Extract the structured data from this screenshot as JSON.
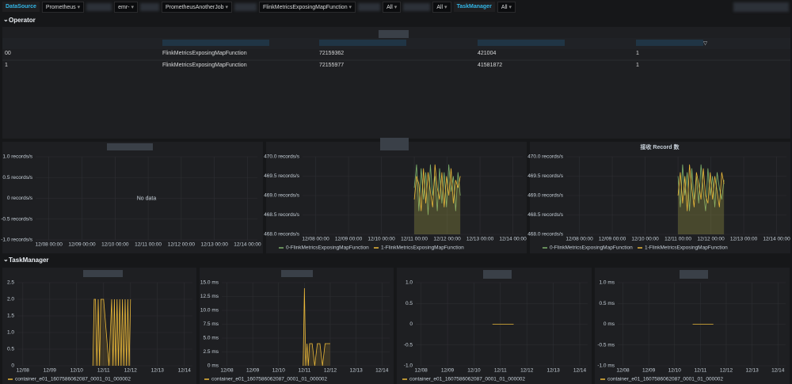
{
  "toolbar": {
    "datasource_label": "DataSource",
    "datasource": "Prometheus",
    "job_prefix": "emr-",
    "job": "PrometheusAnotherJob",
    "operator": "FlinkMetricsExposingMapFunction",
    "filter1": "All",
    "filter2": "All",
    "taskmanager_label": "TaskManager",
    "taskmanager": "All"
  },
  "sections": [
    "Operator",
    "TaskManager"
  ],
  "table": {
    "rows": [
      [
        "00",
        "FlinkMetricsExposingMapFunction",
        72159362,
        421004,
        1
      ],
      [
        "1",
        "FlinkMetricsExposingMapFunction",
        72155977,
        41581872,
        1
      ]
    ]
  },
  "chart_data": [
    {
      "type": "line",
      "no_data_text": "No data",
      "xlim": [
        -0.4,
        6.3
      ],
      "ylim": [
        -1,
        1
      ],
      "yticks": [
        {
          "value": 1,
          "label": "1.0 records/s"
        },
        {
          "value": 0.5,
          "label": "0.5 records/s"
        },
        {
          "value": 0,
          "label": "0 records/s"
        },
        {
          "value": -0.5,
          "label": "-0.5 records/s"
        },
        {
          "value": -1,
          "label": "-1.0 records/s"
        }
      ],
      "xticks": [
        {
          "value": 0,
          "label": "12/08 00:00"
        },
        {
          "value": 1,
          "label": "12/09 00:00"
        },
        {
          "value": 2,
          "label": "12/10 00:00"
        },
        {
          "value": 3,
          "label": "12/11 00:00"
        },
        {
          "value": 4,
          "label": "12/12 00:00"
        },
        {
          "value": 5,
          "label": "12/13 00:00"
        },
        {
          "value": 6,
          "label": "12/14 00:00"
        }
      ],
      "x": [],
      "series": []
    },
    {
      "type": "line",
      "xlim": [
        -0.4,
        6.3
      ],
      "ylim": [
        468,
        470
      ],
      "yticks": [
        {
          "value": 470,
          "label": "470.0 records/s"
        },
        {
          "value": 469.5,
          "label": "469.5 records/s"
        },
        {
          "value": 469,
          "label": "469.0 records/s"
        },
        {
          "value": 468.5,
          "label": "468.5 records/s"
        },
        {
          "value": 468,
          "label": "468.0 records/s"
        }
      ],
      "xticks": [
        {
          "value": 0,
          "label": "12/08 00:00"
        },
        {
          "value": 1,
          "label": "12/09 00:00"
        },
        {
          "value": 2,
          "label": "12/10 00:00"
        },
        {
          "value": 3,
          "label": "12/11 00:00"
        },
        {
          "value": 4,
          "label": "12/12 00:00"
        },
        {
          "value": 5,
          "label": "12/13 00:00"
        },
        {
          "value": 6,
          "label": "12/14 00:00"
        }
      ],
      "x": [
        3.0,
        3.07,
        3.14,
        3.21,
        3.28,
        3.35,
        3.42,
        3.49,
        3.56,
        3.63,
        3.7,
        3.77,
        3.84,
        3.91,
        3.98,
        4.05,
        4.12,
        4.19,
        4.26,
        4.33,
        4.4
      ],
      "series": [
        {
          "name": "0-FlinkMetricsExposingMapFunction",
          "color": "#7eb26d",
          "values": [
            469.2,
            469.8,
            468.6,
            469.7,
            468.9,
            469.6,
            468.5,
            469.8,
            469.0,
            469.5,
            468.6,
            469.7,
            468.8,
            469.6,
            468.7,
            469.8,
            469.1,
            469.5,
            468.6,
            469.6,
            469.0
          ]
        },
        {
          "name": "1-FlinkMetricsExposingMapFunction",
          "color": "#eab839",
          "values": [
            468.9,
            469.5,
            469.3,
            468.6,
            469.7,
            468.8,
            469.6,
            469.1,
            468.7,
            469.8,
            469.2,
            468.9,
            469.6,
            468.7,
            469.5,
            469.0,
            469.7,
            468.8,
            469.4,
            469.2,
            469.5
          ]
        }
      ]
    },
    {
      "type": "line",
      "title": "接收 Record 数",
      "xlim": [
        -0.4,
        6.3
      ],
      "ylim": [
        468,
        470
      ],
      "yticks": [
        {
          "value": 470,
          "label": "470.0 records/s"
        },
        {
          "value": 469.5,
          "label": "469.5 records/s"
        },
        {
          "value": 469,
          "label": "469.0 records/s"
        },
        {
          "value": 468.5,
          "label": "468.5 records/s"
        },
        {
          "value": 468,
          "label": "468.0 records/s"
        }
      ],
      "xticks": [
        {
          "value": 0,
          "label": "12/08 00:00"
        },
        {
          "value": 1,
          "label": "12/09 00:00"
        },
        {
          "value": 2,
          "label": "12/10 00:00"
        },
        {
          "value": 3,
          "label": "12/11 00:00"
        },
        {
          "value": 4,
          "label": "12/12 00:00"
        },
        {
          "value": 5,
          "label": "12/13 00:00"
        },
        {
          "value": 6,
          "label": "12/14 00:00"
        }
      ],
      "x": [
        3.0,
        3.07,
        3.14,
        3.21,
        3.28,
        3.35,
        3.42,
        3.49,
        3.56,
        3.63,
        3.7,
        3.77,
        3.84,
        3.91,
        3.98,
        4.05,
        4.12,
        4.19,
        4.26,
        4.33,
        4.4
      ],
      "series": [
        {
          "name": "0-FlinkMetricsExposingMapFunction",
          "color": "#7eb26d",
          "values": [
            469.5,
            468.7,
            469.8,
            469.0,
            469.6,
            468.6,
            469.7,
            468.9,
            469.5,
            468.8,
            469.8,
            469.1,
            468.6,
            469.7,
            469.0,
            469.5,
            468.7,
            469.6,
            469.2,
            468.9,
            469.4
          ]
        },
        {
          "name": "1-FlinkMetricsExposingMapFunction",
          "color": "#eab839",
          "values": [
            469.0,
            469.6,
            468.8,
            469.5,
            468.6,
            469.8,
            469.2,
            468.7,
            469.6,
            469.3,
            468.9,
            469.7,
            469.0,
            468.8,
            469.6,
            468.9,
            469.5,
            469.1,
            468.7,
            469.6,
            469.3
          ]
        }
      ]
    },
    {
      "type": "line",
      "xlim": [
        -0.2,
        6.3
      ],
      "ylim": [
        0,
        2.5
      ],
      "yticks": [
        {
          "value": 2.5,
          "label": "2.5"
        },
        {
          "value": 2,
          "label": "2.0"
        },
        1.5,
        {
          "value": 1,
          "label": "1.0"
        },
        0.5,
        0
      ],
      "xticks": [
        {
          "value": 0,
          "label": "12/08"
        },
        {
          "value": 1,
          "label": "12/09"
        },
        {
          "value": 2,
          "label": "12/10"
        },
        {
          "value": 3,
          "label": "12/11"
        },
        {
          "value": 4,
          "label": "12/12"
        },
        {
          "value": 5,
          "label": "12/13"
        },
        {
          "value": 6,
          "label": "12/14"
        }
      ],
      "x": [
        2.6,
        2.65,
        2.7,
        2.75,
        2.8,
        2.85,
        2.9,
        3.0,
        3.2,
        3.3,
        3.35,
        3.4,
        3.45,
        3.5,
        3.55,
        3.6,
        3.65,
        3.7,
        3.75,
        3.8,
        3.85,
        3.9,
        3.95,
        4.0
      ],
      "series": [
        {
          "name": "container_e01_1607586062087_0001_01_000002",
          "color": "#eab839",
          "values": [
            0,
            2,
            2,
            0,
            2,
            0,
            2,
            2,
            0,
            2,
            0,
            2,
            0,
            2,
            0,
            2,
            0,
            2,
            0,
            2,
            0,
            2,
            0,
            2
          ]
        }
      ]
    },
    {
      "type": "line",
      "xlim": [
        -0.2,
        6.3
      ],
      "ylim": [
        0,
        15
      ],
      "yticks": [
        {
          "value": 15,
          "label": "15.0 ms"
        },
        {
          "value": 12.5,
          "label": "12.5 ms"
        },
        {
          "value": 10,
          "label": "10.0 ms"
        },
        {
          "value": 7.5,
          "label": "7.5 ms"
        },
        {
          "value": 5,
          "label": "5.0 ms"
        },
        {
          "value": 2.5,
          "label": "2.5 ms"
        },
        {
          "value": 0,
          "label": "0 ms"
        }
      ],
      "xticks": [
        {
          "value": 0,
          "label": "12/08"
        },
        {
          "value": 1,
          "label": "12/09"
        },
        {
          "value": 2,
          "label": "12/10"
        },
        {
          "value": 3,
          "label": "12/11"
        },
        {
          "value": 4,
          "label": "12/12"
        },
        {
          "value": 5,
          "label": "12/13"
        },
        {
          "value": 6,
          "label": "12/14"
        }
      ],
      "x": [
        2.95,
        3.0,
        3.05,
        3.1,
        3.15,
        3.2,
        3.3,
        3.4,
        3.5,
        3.6,
        3.7,
        3.8,
        3.9,
        4.0
      ],
      "series": [
        {
          "name": "container_e01_1607586062087_0001_01_000002",
          "color": "#eab839",
          "values": [
            0,
            14,
            0,
            4,
            0,
            4,
            4,
            0,
            4,
            4,
            0,
            4,
            4,
            4
          ]
        }
      ]
    },
    {
      "type": "line",
      "xlim": [
        -0.2,
        6.3
      ],
      "ylim": [
        -1,
        1
      ],
      "yticks": [
        {
          "value": 1,
          "label": "1.0"
        },
        0.5,
        0,
        -0.5,
        {
          "value": -1,
          "label": "-1.0"
        }
      ],
      "xticks": [
        {
          "value": 0,
          "label": "12/08"
        },
        {
          "value": 1,
          "label": "12/09"
        },
        {
          "value": 2,
          "label": "12/10"
        },
        {
          "value": 3,
          "label": "12/11"
        },
        {
          "value": 4,
          "label": "12/12"
        },
        {
          "value": 5,
          "label": "12/13"
        },
        {
          "value": 6,
          "label": "12/14"
        }
      ],
      "x": [
        2.7,
        2.9,
        3.1,
        3.3,
        3.5
      ],
      "series": [
        {
          "name": "container_e01_1607586062087_0001_01_000002",
          "color": "#eab839",
          "values": [
            0,
            0,
            0,
            0,
            0
          ]
        }
      ]
    },
    {
      "type": "line",
      "xlim": [
        -0.2,
        6.3
      ],
      "ylim": [
        -1,
        1
      ],
      "yticks": [
        {
          "value": 1,
          "label": "1.0 ms"
        },
        {
          "value": 0.5,
          "label": "0.5 ms"
        },
        {
          "value": 0,
          "label": "0 ms"
        },
        {
          "value": -0.5,
          "label": "-0.5 ms"
        },
        {
          "value": -1,
          "label": "-1.0 ms"
        }
      ],
      "xticks": [
        {
          "value": 0,
          "label": "12/08"
        },
        {
          "value": 1,
          "label": "12/09"
        },
        {
          "value": 2,
          "label": "12/10"
        },
        {
          "value": 3,
          "label": "12/11"
        },
        {
          "value": 4,
          "label": "12/12"
        },
        {
          "value": 5,
          "label": "12/13"
        },
        {
          "value": 6,
          "label": "12/14"
        }
      ],
      "x": [
        2.7,
        2.9,
        3.1,
        3.3,
        3.5
      ],
      "series": [
        {
          "name": "container_e01_1607586062087_0001_01_000002",
          "color": "#eab839",
          "values": [
            0,
            0,
            0,
            0,
            0
          ]
        }
      ]
    }
  ]
}
